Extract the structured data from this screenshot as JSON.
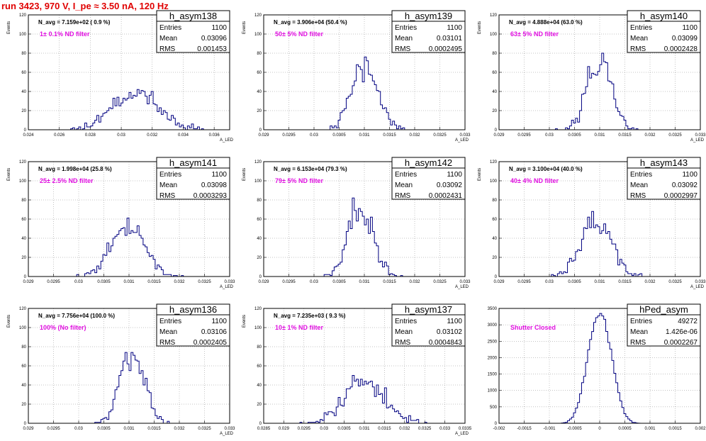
{
  "run_title": "run 3423,   970 V, I_pe ≈ 3.50 nA, 120 Hz",
  "colors": {
    "title": "#e00000",
    "histogram": "#000080",
    "filter_label": "#e010e0",
    "frame": "#000000",
    "grid": "#888888"
  },
  "chart_data": [
    {
      "type": "bar",
      "name": "h_asym138",
      "navg": "N_avg = 7.159e+02 ( 0.9 %)",
      "filter": "1± 0.1% ND filter",
      "stats": [
        {
          "label": "Entries",
          "value": "1100"
        },
        {
          "label": "Mean",
          "value": "0.03096"
        },
        {
          "label": "RMS",
          "value": "0.001453"
        }
      ],
      "ylabel": "Events",
      "xlabel": "A_LED",
      "xlim": [
        0.024,
        0.037
      ],
      "ylim": [
        0,
        120
      ],
      "xticks": [
        {
          "v": 0.024,
          "l": "0.024"
        },
        {
          "v": 0.026,
          "l": "0.026"
        },
        {
          "v": 0.028,
          "l": "0.028"
        },
        {
          "v": 0.03,
          "l": "0.03"
        },
        {
          "v": 0.032,
          "l": "0.032"
        },
        {
          "v": 0.034,
          "l": "0.034"
        },
        {
          "v": 0.036,
          "l": "0.036"
        }
      ],
      "yticks": [
        0,
        20,
        40,
        60,
        80,
        100,
        120
      ],
      "grid": true,
      "dist": {
        "mean": 0.03096,
        "rms": 0.001453,
        "entries": 1100,
        "bins": 100,
        "seed": 11
      }
    },
    {
      "type": "bar",
      "name": "h_asym139",
      "navg": "N_avg = 3.906e+04 (50.4 %)",
      "filter": "50± 5% ND filter",
      "stats": [
        {
          "label": "Entries",
          "value": "1100"
        },
        {
          "label": "Mean",
          "value": "0.03101"
        },
        {
          "label": "RMS",
          "value": "0.0002495"
        }
      ],
      "ylabel": "Events",
      "xlabel": "A_LED",
      "xlim": [
        0.029,
        0.033
      ],
      "ylim": [
        0,
        120
      ],
      "xticks": [
        {
          "v": 0.029,
          "l": "0.029"
        },
        {
          "v": 0.0295,
          "l": "0.0295"
        },
        {
          "v": 0.03,
          "l": "0.03"
        },
        {
          "v": 0.0305,
          "l": "0.0305"
        },
        {
          "v": 0.031,
          "l": "0.031"
        },
        {
          "v": 0.0315,
          "l": "0.0315"
        },
        {
          "v": 0.032,
          "l": "0.032"
        },
        {
          "v": 0.0325,
          "l": "0.0325"
        },
        {
          "v": 0.033,
          "l": "0.033"
        }
      ],
      "yticks": [
        0,
        20,
        40,
        60,
        80,
        100,
        120
      ],
      "grid": true,
      "dist": {
        "mean": 0.03101,
        "rms": 0.0002495,
        "entries": 1100,
        "bins": 100,
        "seed": 23
      }
    },
    {
      "type": "bar",
      "name": "h_asym140",
      "navg": "N_avg = 4.888e+04 (63.0 %)",
      "filter": "63± 5% ND filter",
      "stats": [
        {
          "label": "Entries",
          "value": "1100"
        },
        {
          "label": "Mean",
          "value": "0.03099"
        },
        {
          "label": "RMS",
          "value": "0.0002428"
        }
      ],
      "ylabel": "Events",
      "xlabel": "A_LED",
      "xlim": [
        0.029,
        0.033
      ],
      "ylim": [
        0,
        120
      ],
      "xticks": [
        {
          "v": 0.029,
          "l": "0.029"
        },
        {
          "v": 0.0295,
          "l": "0.0295"
        },
        {
          "v": 0.03,
          "l": "0.03"
        },
        {
          "v": 0.0305,
          "l": "0.0305"
        },
        {
          "v": 0.031,
          "l": "0.031"
        },
        {
          "v": 0.0315,
          "l": "0.0315"
        },
        {
          "v": 0.032,
          "l": "0.032"
        },
        {
          "v": 0.0325,
          "l": "0.0325"
        },
        {
          "v": 0.033,
          "l": "0.033"
        }
      ],
      "yticks": [
        0,
        20,
        40,
        60,
        80,
        100,
        120
      ],
      "grid": true,
      "dist": {
        "mean": 0.03099,
        "rms": 0.0002428,
        "entries": 1100,
        "bins": 100,
        "seed": 37
      }
    },
    {
      "type": "bar",
      "name": "h_asym141",
      "navg": "N_avg = 1.998e+04 (25.8 %)",
      "filter": "25± 2.5% ND filter",
      "stats": [
        {
          "label": "Entries",
          "value": "1100"
        },
        {
          "label": "Mean",
          "value": "0.03098"
        },
        {
          "label": "RMS",
          "value": "0.0003293"
        }
      ],
      "ylabel": "Events",
      "xlabel": "A_LED",
      "xlim": [
        0.029,
        0.033
      ],
      "ylim": [
        0,
        120
      ],
      "xticks": [
        {
          "v": 0.029,
          "l": "0.029"
        },
        {
          "v": 0.0295,
          "l": "0.0295"
        },
        {
          "v": 0.03,
          "l": "0.03"
        },
        {
          "v": 0.0305,
          "l": "0.0305"
        },
        {
          "v": 0.031,
          "l": "0.031"
        },
        {
          "v": 0.0315,
          "l": "0.0315"
        },
        {
          "v": 0.032,
          "l": "0.032"
        },
        {
          "v": 0.0325,
          "l": "0.0325"
        },
        {
          "v": 0.033,
          "l": "0.033"
        }
      ],
      "yticks": [
        0,
        20,
        40,
        60,
        80,
        100,
        120
      ],
      "grid": true,
      "dist": {
        "mean": 0.03098,
        "rms": 0.0003293,
        "entries": 1100,
        "bins": 100,
        "seed": 41
      }
    },
    {
      "type": "bar",
      "name": "h_asym142",
      "navg": "N_avg = 6.153e+04 (79.3 %)",
      "filter": "79± 5% ND filter",
      "stats": [
        {
          "label": "Entries",
          "value": "1100"
        },
        {
          "label": "Mean",
          "value": "0.03092"
        },
        {
          "label": "RMS",
          "value": "0.0002431"
        }
      ],
      "ylabel": "Events",
      "xlabel": "A_LED",
      "xlim": [
        0.029,
        0.033
      ],
      "ylim": [
        0,
        120
      ],
      "xticks": [
        {
          "v": 0.029,
          "l": "0.029"
        },
        {
          "v": 0.0295,
          "l": "0.0295"
        },
        {
          "v": 0.03,
          "l": "0.03"
        },
        {
          "v": 0.0305,
          "l": "0.0305"
        },
        {
          "v": 0.031,
          "l": "0.031"
        },
        {
          "v": 0.0315,
          "l": "0.0315"
        },
        {
          "v": 0.032,
          "l": "0.032"
        },
        {
          "v": 0.0325,
          "l": "0.0325"
        },
        {
          "v": 0.033,
          "l": "0.033"
        }
      ],
      "yticks": [
        0,
        20,
        40,
        60,
        80,
        100,
        120
      ],
      "grid": true,
      "dist": {
        "mean": 0.03092,
        "rms": 0.0002431,
        "entries": 1100,
        "bins": 100,
        "seed": 53
      }
    },
    {
      "type": "bar",
      "name": "h_asym143",
      "navg": "N_avg = 3.100e+04 (40.0 %)",
      "filter": "40± 4% ND filter",
      "stats": [
        {
          "label": "Entries",
          "value": "1100"
        },
        {
          "label": "Mean",
          "value": "0.03092"
        },
        {
          "label": "RMS",
          "value": "0.0002997"
        }
      ],
      "ylabel": "Events",
      "xlabel": "A_LED",
      "xlim": [
        0.029,
        0.033
      ],
      "ylim": [
        0,
        120
      ],
      "xticks": [
        {
          "v": 0.029,
          "l": "0.029"
        },
        {
          "v": 0.0295,
          "l": "0.0295"
        },
        {
          "v": 0.03,
          "l": "0.03"
        },
        {
          "v": 0.0305,
          "l": "0.0305"
        },
        {
          "v": 0.031,
          "l": "0.031"
        },
        {
          "v": 0.0315,
          "l": "0.0315"
        },
        {
          "v": 0.032,
          "l": "0.032"
        },
        {
          "v": 0.0325,
          "l": "0.0325"
        },
        {
          "v": 0.033,
          "l": "0.033"
        }
      ],
      "yticks": [
        0,
        20,
        40,
        60,
        80,
        100,
        120
      ],
      "grid": true,
      "dist": {
        "mean": 0.03092,
        "rms": 0.0002997,
        "entries": 1100,
        "bins": 100,
        "seed": 67
      }
    },
    {
      "type": "bar",
      "name": "h_asym136",
      "navg": "N_avg = 7.756e+04 (100.0 %)",
      "filter": "100% (No filter)",
      "stats": [
        {
          "label": "Entries",
          "value": "1100"
        },
        {
          "label": "Mean",
          "value": "0.03106"
        },
        {
          "label": "RMS",
          "value": "0.0002405"
        }
      ],
      "ylabel": "Events",
      "xlabel": "A_LED",
      "xlim": [
        0.029,
        0.033
      ],
      "ylim": [
        0,
        120
      ],
      "xticks": [
        {
          "v": 0.029,
          "l": "0.029"
        },
        {
          "v": 0.0295,
          "l": "0.0295"
        },
        {
          "v": 0.03,
          "l": "0.03"
        },
        {
          "v": 0.0305,
          "l": "0.0305"
        },
        {
          "v": 0.031,
          "l": "0.031"
        },
        {
          "v": 0.0315,
          "l": "0.0315"
        },
        {
          "v": 0.032,
          "l": "0.032"
        },
        {
          "v": 0.0325,
          "l": "0.0325"
        },
        {
          "v": 0.033,
          "l": "0.033"
        }
      ],
      "yticks": [
        0,
        20,
        40,
        60,
        80,
        100,
        120
      ],
      "grid": true,
      "dist": {
        "mean": 0.03106,
        "rms": 0.0002405,
        "entries": 1100,
        "bins": 100,
        "seed": 79
      }
    },
    {
      "type": "bar",
      "name": "h_asym137",
      "navg": "N_avg = 7.235e+03 ( 9.3 %)",
      "filter": "10± 1% ND filter",
      "stats": [
        {
          "label": "Entries",
          "value": "1100"
        },
        {
          "label": "Mean",
          "value": "0.03102"
        },
        {
          "label": "RMS",
          "value": "0.0004843"
        }
      ],
      "ylabel": "Events",
      "xlabel": "A_LED",
      "xlim": [
        0.0285,
        0.0335
      ],
      "ylim": [
        0,
        120
      ],
      "xticks": [
        {
          "v": 0.0285,
          "l": "0.0285"
        },
        {
          "v": 0.029,
          "l": "0.029"
        },
        {
          "v": 0.0295,
          "l": "0.0295"
        },
        {
          "v": 0.03,
          "l": "0.03"
        },
        {
          "v": 0.0305,
          "l": "0.0305"
        },
        {
          "v": 0.031,
          "l": "0.031"
        },
        {
          "v": 0.0315,
          "l": "0.0315"
        },
        {
          "v": 0.032,
          "l": "0.032"
        },
        {
          "v": 0.0325,
          "l": "0.0325"
        },
        {
          "v": 0.033,
          "l": "0.033"
        },
        {
          "v": 0.0335,
          "l": "0.0335"
        }
      ],
      "yticks": [
        0,
        20,
        40,
        60,
        80,
        100,
        120
      ],
      "grid": true,
      "dist": {
        "mean": 0.03102,
        "rms": 0.0004843,
        "entries": 1100,
        "bins": 100,
        "seed": 97
      }
    },
    {
      "type": "bar",
      "name": "hPed_asym",
      "navg": "",
      "filter": "Shutter Closed",
      "stats": [
        {
          "label": "Entries",
          "value": "49272"
        },
        {
          "label": "Mean",
          "value": "1.426e-06"
        },
        {
          "label": "RMS",
          "value": "0.0002267"
        }
      ],
      "ylabel": "",
      "xlabel": "",
      "xlim": [
        -0.002,
        0.002
      ],
      "ylim": [
        0,
        3500
      ],
      "xticks": [
        {
          "v": -0.002,
          "l": "-0.002"
        },
        {
          "v": -0.0015,
          "l": "-0.0015"
        },
        {
          "v": -0.001,
          "l": "-0.001"
        },
        {
          "v": -0.0005,
          "l": "-0.0005"
        },
        {
          "v": 0,
          "l": "0"
        },
        {
          "v": 0.0005,
          "l": "0.0005"
        },
        {
          "v": 0.001,
          "l": "0.001"
        },
        {
          "v": 0.0015,
          "l": "0.0015"
        },
        {
          "v": 0.002,
          "l": "0.002"
        }
      ],
      "yticks": [
        0,
        500,
        1000,
        1500,
        2000,
        2500,
        3000,
        3500
      ],
      "grid": true,
      "dist": {
        "mean": 1.426e-06,
        "rms": 0.0002267,
        "entries": 49272,
        "bins": 100,
        "seed": 113
      }
    }
  ]
}
